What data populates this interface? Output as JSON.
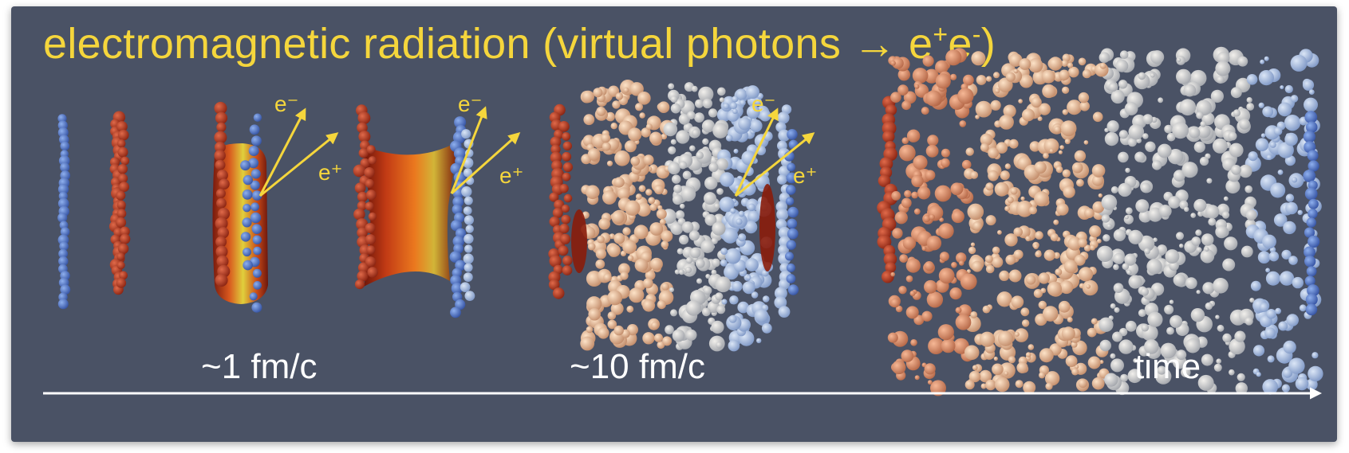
{
  "title": {
    "main": "electromagnetic radiation (virtual photons → e",
    "sup1": "+",
    "mid": "e",
    "sup2": "-",
    "end": ")"
  },
  "annotations": {
    "electron": "e⁻",
    "positron": "e⁺"
  },
  "time_labels": {
    "t1": "~1 fm/c",
    "t10": "~10 fm/c",
    "axis": "time"
  },
  "colors": {
    "background": "#4a5265",
    "title": "#f5d63c",
    "arrow": "#f5d63c",
    "red_nucleon": "#b8391f",
    "blue_nucleon": "#5577c8",
    "time_axis": "#ffffff"
  }
}
